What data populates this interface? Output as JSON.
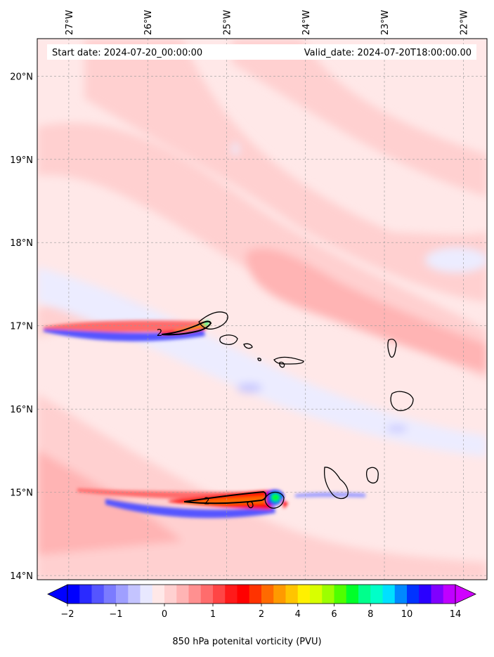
{
  "map": {
    "start_date_label": "Start date: 2024-07-20_00:00:00",
    "valid_date_label": "Valid_date: 2024-07-20T18:00:00.00",
    "extent": {
      "lon_min": -27.4,
      "lon_max": -21.7,
      "lat_min": 13.95,
      "lat_max": 20.45
    },
    "lon_ticks": [
      {
        "value": -27,
        "label": "27°W"
      },
      {
        "value": -26,
        "label": "26°W"
      },
      {
        "value": -25,
        "label": "25°W"
      },
      {
        "value": -24,
        "label": "24°W"
      },
      {
        "value": -23,
        "label": "23°W"
      },
      {
        "value": -22,
        "label": "22°W"
      }
    ],
    "lat_ticks": [
      {
        "value": 20,
        "label": "20°N"
      },
      {
        "value": 19,
        "label": "19°N"
      },
      {
        "value": 18,
        "label": "18°N"
      },
      {
        "value": 17,
        "label": "17°N"
      },
      {
        "value": 16,
        "label": "16°N"
      },
      {
        "value": 15,
        "label": "15°N"
      },
      {
        "value": 14,
        "label": "14°N"
      }
    ],
    "contour_labels": [
      {
        "text": "2",
        "lon": -25.85,
        "lat": 16.92
      },
      {
        "text": "2",
        "lon": -25.25,
        "lat": 14.9
      }
    ]
  },
  "colorbar": {
    "title": "850 hPa potenital vorticity (PVU)",
    "tick_labels": [
      {
        "value": -2,
        "label": "−2"
      },
      {
        "value": -1,
        "label": "−1"
      },
      {
        "value": 0,
        "label": "0"
      },
      {
        "value": 1,
        "label": "1"
      },
      {
        "value": 2,
        "label": "2"
      },
      {
        "value": 4,
        "label": "4"
      },
      {
        "value": 6,
        "label": "6"
      },
      {
        "value": 8,
        "label": "8"
      },
      {
        "value": 10,
        "label": "10"
      },
      {
        "value": 14,
        "label": "14"
      }
    ],
    "colors": [
      "#0000ff",
      "#2a2aff",
      "#5555ff",
      "#7b7bff",
      "#9f9fff",
      "#c4c4ff",
      "#e8e8ff",
      "#ffe8e8",
      "#ffd0d0",
      "#ffb4b4",
      "#ff9090",
      "#ff6c6c",
      "#ff4545",
      "#ff1a1a",
      "#ff0000",
      "#ff3300",
      "#ff6a00",
      "#ff9a00",
      "#ffc400",
      "#fff000",
      "#d8ff00",
      "#9cff00",
      "#50ff00",
      "#00ff2a",
      "#00ff8c",
      "#00ffc8",
      "#00e0ff",
      "#0088ff",
      "#0033ff",
      "#2a00ff",
      "#8000ff",
      "#c000ff"
    ],
    "extend_low_color": "#0000ff",
    "extend_high_color": "#d000ff"
  }
}
